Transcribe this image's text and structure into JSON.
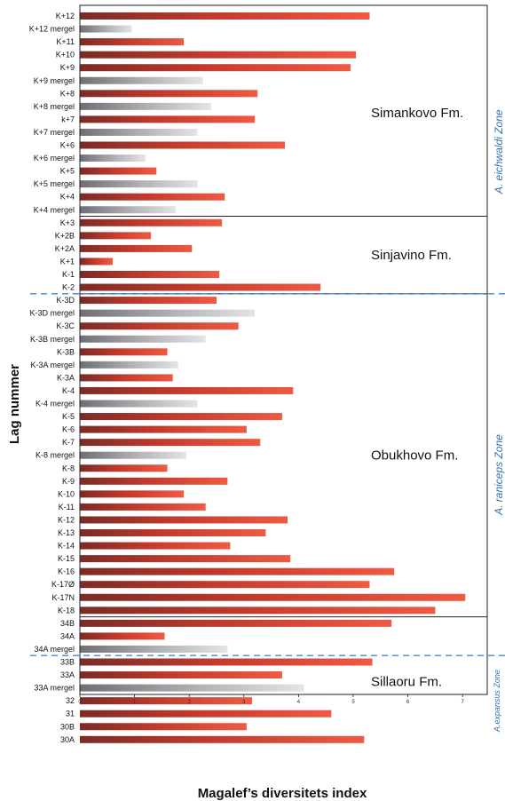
{
  "chart_data": {
    "type": "bar",
    "orientation": "horizontal",
    "xlabel": "Magalef’s diversitets index",
    "ylabel": "Lag nummer",
    "xlim": [
      0,
      7.5
    ],
    "xticks": [
      "0",
      "1",
      "2",
      "3",
      "4",
      "5",
      "6",
      "7"
    ],
    "colors": {
      "sample": "#d9452f",
      "mergel": "#a8a8ae"
    },
    "categories": [
      "K+12",
      "K+12 mergel",
      "K+11",
      "K+10",
      "K+9",
      "K+9 mergel",
      "K+8",
      "K+8 mergel",
      "k+7",
      "K+7 mergel",
      "K+6",
      "K+6 mergel",
      "K+5",
      "K+5 mergel",
      "K+4",
      "K+4 mergel",
      "K+3",
      "K+2B",
      "K+2A",
      "K+1",
      "K-1",
      "K-2",
      "K-3D",
      "K-3D mergel",
      "K-3C",
      "K-3B mergel",
      "K-3B",
      "K-3A mergel",
      "K-3A",
      "K-4",
      "K-4 mergel",
      "K-5",
      "K-6",
      "K-7",
      "K-8 mergel",
      "K-8",
      "K-9",
      "K-10",
      "K-11",
      "K-12",
      "K-13",
      "K-14",
      "K-15",
      "K-16",
      "K-17Ø",
      "K-17N",
      "K-18",
      "34B",
      "34A",
      "34A mergel",
      "33B",
      "33A",
      "33A mergel",
      "32",
      "31",
      "30B",
      "30A"
    ],
    "values": [
      5.3,
      0.95,
      1.9,
      5.05,
      4.95,
      2.25,
      3.25,
      2.4,
      3.2,
      2.15,
      3.75,
      1.2,
      1.4,
      2.15,
      2.65,
      1.75,
      2.6,
      1.3,
      2.05,
      0.6,
      2.55,
      4.4,
      2.5,
      3.2,
      2.9,
      2.3,
      1.6,
      1.8,
      1.7,
      3.9,
      2.15,
      3.7,
      3.05,
      3.3,
      1.95,
      1.6,
      2.7,
      1.9,
      2.3,
      3.8,
      3.4,
      2.75,
      3.85,
      5.75,
      5.3,
      7.05,
      6.5,
      5.7,
      1.55,
      2.7,
      5.35,
      3.7,
      4.1,
      3.15,
      4.6,
      3.05,
      5.2
    ],
    "formations": [
      {
        "label": "Simankovo Fm.",
        "start": 0,
        "end": 15
      },
      {
        "label": "Sinjavino Fm.",
        "start": 16,
        "end": 21
      },
      {
        "label": "Obukhovo Fm.",
        "start": 22,
        "end": 46
      },
      {
        "label": "Sillaoru Fm.",
        "start": 47,
        "end": 56
      }
    ],
    "zones": [
      {
        "label": "A. eichwaldi Zone",
        "start": 0,
        "end": 21
      },
      {
        "label": "A. raniceps Zone",
        "start": 22,
        "end": 49
      },
      {
        "label": "A.expansus Zone",
        "start": 50,
        "end": 56
      }
    ]
  }
}
